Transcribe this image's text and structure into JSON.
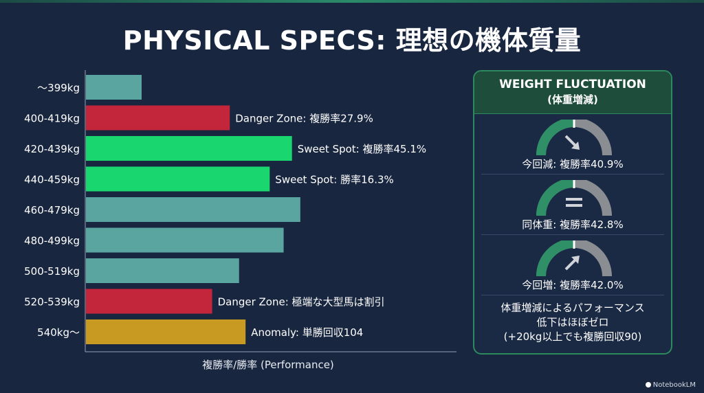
{
  "title": "PHYSICAL SPECS: 理想の機体質量",
  "chart_data": {
    "type": "bar",
    "orientation": "horizontal",
    "title": "PHYSICAL SPECS: 理想の機体質量",
    "xlabel": "複勝率/勝率 (Performance)",
    "ylabel": "",
    "categories": [
      "〜399kg",
      "400-419kg",
      "420-439kg",
      "440-459kg",
      "460-479kg",
      "480-499kg",
      "500-519kg",
      "520-539kg",
      "540kg〜"
    ],
    "values": [
      6.0,
      15.5,
      22.2,
      19.8,
      23.1,
      21.3,
      16.5,
      13.6,
      17.2
    ],
    "xlim": [
      0,
      40
    ],
    "bar_colors": [
      "#5aa59f",
      "#c3263a",
      "#19d66f",
      "#19d66f",
      "#5aa59f",
      "#5aa59f",
      "#5aa59f",
      "#c3263a",
      "#c99a22"
    ],
    "annotations": [
      "",
      "Danger Zone: 複勝率27.9%",
      "Sweet Spot: 複勝率45.1%",
      "Sweet Spot: 勝率16.3%",
      "",
      "",
      "",
      "Danger Zone: 極端な大型馬は割引",
      "Anomaly: 単勝回収104"
    ],
    "grid": false,
    "legend": "none"
  },
  "panel": {
    "title": "WEIGHT FLUCTUATION",
    "subtitle": "(体重増減)",
    "gauges": [
      {
        "label": "今回減: 複勝率40.9%",
        "icon": "arrow-down-right-icon",
        "value": 40.9
      },
      {
        "label": "同体重: 複勝率42.8%",
        "icon": "equals-icon",
        "value": 42.8
      },
      {
        "label": "今回増: 複勝率42.0%",
        "icon": "arrow-up-right-icon",
        "value": 42.0
      }
    ],
    "note_lines": [
      "体重増減によるパフォーマンス",
      "低下はほぼゼロ",
      "(+20kg以上でも複勝回収90)"
    ]
  },
  "colors": {
    "background": "#182640",
    "accent": "#2d8a5e",
    "gauge_fill": "#2f8f66",
    "gauge_track": "#8a8d92"
  },
  "brand": "NotebookLM"
}
